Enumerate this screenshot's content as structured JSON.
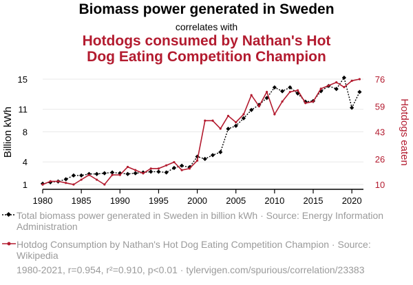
{
  "title": "Biomass power generated in Sweden",
  "subtitle": "correlates with",
  "title2_line1": "Hotdogs consumed by Nathan's Hot",
  "title2_line2": "Dog Eating Competition Champion",
  "chart_data": {
    "type": "line",
    "x": [
      1980,
      1981,
      1982,
      1983,
      1984,
      1985,
      1986,
      1987,
      1988,
      1989,
      1990,
      1991,
      1992,
      1993,
      1994,
      1995,
      1996,
      1997,
      1998,
      1999,
      2000,
      2001,
      2002,
      2003,
      2004,
      2005,
      2006,
      2007,
      2008,
      2009,
      2010,
      2011,
      2012,
      2013,
      2014,
      2015,
      2016,
      2017,
      2018,
      2019,
      2020,
      2021
    ],
    "xlim": [
      1980,
      2021.5
    ],
    "xticks": [
      1980,
      1985,
      1990,
      1995,
      2000,
      2005,
      2010,
      2015,
      2020
    ],
    "series": [
      {
        "name": "Total biomass power generated in Sweden in billion kWh · Source: Energy Information Administration",
        "axis": "left",
        "color": "#000000",
        "values": [
          1.1,
          1.3,
          1.4,
          1.7,
          2.2,
          2.2,
          2.4,
          2.4,
          2.5,
          2.6,
          2.5,
          2.4,
          2.5,
          2.6,
          2.7,
          2.7,
          2.6,
          3.2,
          3.5,
          3.3,
          4.7,
          4.4,
          4.9,
          5.3,
          8.4,
          8.8,
          9.8,
          10.9,
          11.6,
          12.5,
          13.9,
          13.4,
          13.9,
          13.1,
          12.0,
          12.1,
          13.4,
          14.1,
          13.7,
          15.2,
          11.2,
          13.3
        ]
      },
      {
        "name": "Hotdog Consumption by Nathan's Hot Dog Eating Competition Champion · Source: Wikipedia",
        "axis": "right",
        "color": "#b31b2f",
        "values": [
          10,
          12,
          12,
          11,
          10,
          13,
          16,
          13,
          10,
          16,
          16,
          21,
          19,
          17,
          20,
          20,
          22,
          24,
          19,
          20,
          25,
          50,
          50,
          45,
          53,
          49,
          54,
          66,
          59,
          68,
          54,
          62,
          68,
          69,
          61,
          62,
          70,
          72,
          74,
          71,
          75,
          76
        ]
      }
    ],
    "yleft": {
      "label": "Billion kWh",
      "ticks": [
        1,
        4,
        8,
        11,
        15
      ],
      "lim": [
        1,
        15
      ]
    },
    "yright": {
      "label": "Hotdogs eaten",
      "ticks": [
        10,
        26,
        43,
        59,
        76
      ],
      "lim": [
        10,
        76
      ]
    },
    "colors": {
      "left_series": "#000000",
      "right_series": "#b31b2f",
      "grid": "#e8e8e8"
    }
  },
  "legend": {
    "item1": "Total biomass power generated in Sweden in billion kWh · Source: Energy Information Administration",
    "item2": "Hotdog Consumption by Nathan's Hot Dog Eating Competition Champion · Source: Wikipedia"
  },
  "footer": "1980-2021, r=0.954, r²=0.910, p<0.01 · tylervigen.com/spurious/correlation/23383"
}
